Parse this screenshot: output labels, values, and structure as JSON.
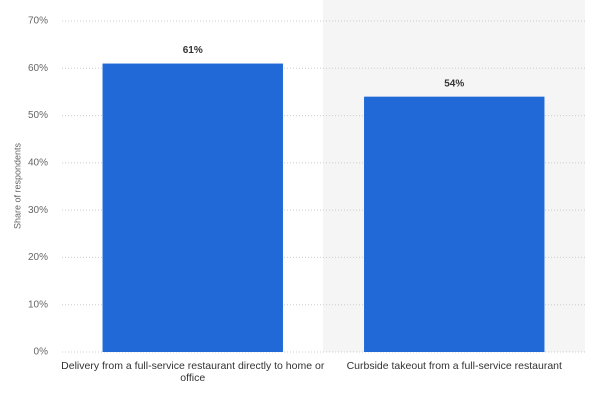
{
  "chart_data": {
    "type": "bar",
    "y_label": "Share of respondents",
    "categories": [
      "Delivery from a full-service restaurant directly to home or office",
      "Curbside takeout from a full-service restaurant"
    ],
    "values": [
      61,
      54
    ],
    "value_labels": [
      "61%",
      "54%"
    ],
    "color": "#2269d8",
    "ylim": [
      0,
      70
    ],
    "yticks": [
      {
        "value": 0,
        "label": "0%"
      },
      {
        "value": 10,
        "label": "10%"
      },
      {
        "value": 20,
        "label": "20%"
      },
      {
        "value": 30,
        "label": "30%"
      },
      {
        "value": 40,
        "label": "40%"
      },
      {
        "value": 50,
        "label": "50%"
      },
      {
        "value": 60,
        "label": "60%"
      },
      {
        "value": 70,
        "label": "70%"
      }
    ],
    "grid": true
  }
}
